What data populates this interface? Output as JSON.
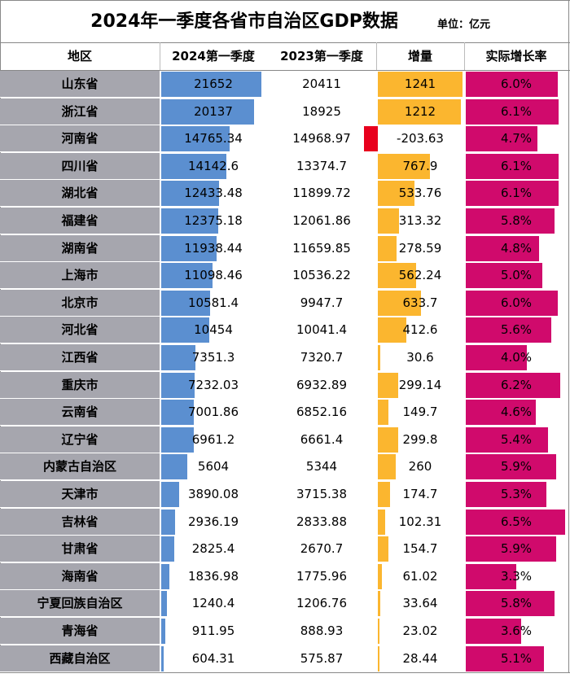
{
  "title": "2024年一季度各省市自治区GDP数据",
  "unit": "单位：亿元",
  "headers": {
    "region": "地区",
    "q2024": "2024第一季度",
    "q2023": "2023第一季度",
    "increase": "增量",
    "rate": "实际增长率"
  },
  "chart_data": {
    "type": "table",
    "title": "2024年一季度各省市自治区GDP数据",
    "columns": [
      "地区",
      "2024第一季度",
      "2023第一季度",
      "增量",
      "实际增长率"
    ],
    "rows": [
      {
        "region": "山东省",
        "q2024": "21652",
        "q2023": "20411",
        "increase": "1241",
        "rate": "6.0%"
      },
      {
        "region": "浙江省",
        "q2024": "20137",
        "q2023": "18925",
        "increase": "1212",
        "rate": "6.1%"
      },
      {
        "region": "河南省",
        "q2024": "14765.34",
        "q2023": "14968.97",
        "increase": "-203.63",
        "rate": "4.7%"
      },
      {
        "region": "四川省",
        "q2024": "14142.6",
        "q2023": "13374.7",
        "increase": "767.9",
        "rate": "6.1%"
      },
      {
        "region": "湖北省",
        "q2024": "12433.48",
        "q2023": "11899.72",
        "increase": "533.76",
        "rate": "6.1%"
      },
      {
        "region": "福建省",
        "q2024": "12375.18",
        "q2023": "12061.86",
        "increase": "313.32",
        "rate": "5.8%"
      },
      {
        "region": "湖南省",
        "q2024": "11938.44",
        "q2023": "11659.85",
        "increase": "278.59",
        "rate": "4.8%"
      },
      {
        "region": "上海市",
        "q2024": "11098.46",
        "q2023": "10536.22",
        "increase": "562.24",
        "rate": "5.0%"
      },
      {
        "region": "北京市",
        "q2024": "10581.4",
        "q2023": "9947.7",
        "increase": "633.7",
        "rate": "6.0%"
      },
      {
        "region": "河北省",
        "q2024": "10454",
        "q2023": "10041.4",
        "increase": "412.6",
        "rate": "5.6%"
      },
      {
        "region": "江西省",
        "q2024": "7351.3",
        "q2023": "7320.7",
        "increase": "30.6",
        "rate": "4.0%"
      },
      {
        "region": "重庆市",
        "q2024": "7232.03",
        "q2023": "6932.89",
        "increase": "299.14",
        "rate": "6.2%"
      },
      {
        "region": "云南省",
        "q2024": "7001.86",
        "q2023": "6852.16",
        "increase": "149.7",
        "rate": "4.6%"
      },
      {
        "region": "辽宁省",
        "q2024": "6961.2",
        "q2023": "6661.4",
        "increase": "299.8",
        "rate": "5.4%"
      },
      {
        "region": "内蒙古自治区",
        "q2024": "5604",
        "q2023": "5344",
        "increase": "260",
        "rate": "5.9%"
      },
      {
        "region": "天津市",
        "q2024": "3890.08",
        "q2023": "3715.38",
        "increase": "174.7",
        "rate": "5.3%"
      },
      {
        "region": "吉林省",
        "q2024": "2936.19",
        "q2023": "2833.88",
        "increase": "102.31",
        "rate": "6.5%"
      },
      {
        "region": "甘肃省",
        "q2024": "2825.4",
        "q2023": "2670.7",
        "increase": "154.7",
        "rate": "5.9%"
      },
      {
        "region": "海南省",
        "q2024": "1836.98",
        "q2023": "1775.96",
        "increase": "61.02",
        "rate": "3.3%"
      },
      {
        "region": "宁夏回族自治区",
        "q2024": "1240.4",
        "q2023": "1206.76",
        "increase": "33.64",
        "rate": "5.8%"
      },
      {
        "region": "青海省",
        "q2024": "911.95",
        "q2023": "888.93",
        "increase": "23.02",
        "rate": "3.6%"
      },
      {
        "region": "西藏自治区",
        "q2024": "604.31",
        "q2023": "575.87",
        "increase": "28.44",
        "rate": "5.1%"
      }
    ]
  },
  "colors": {
    "region_bg": "#a6a6ae",
    "q2024_bar": "#5b8fd0",
    "increase_bar": "#fbb62f",
    "negative_bar": "#e8001d",
    "rate_bar": "#d00a6c"
  }
}
